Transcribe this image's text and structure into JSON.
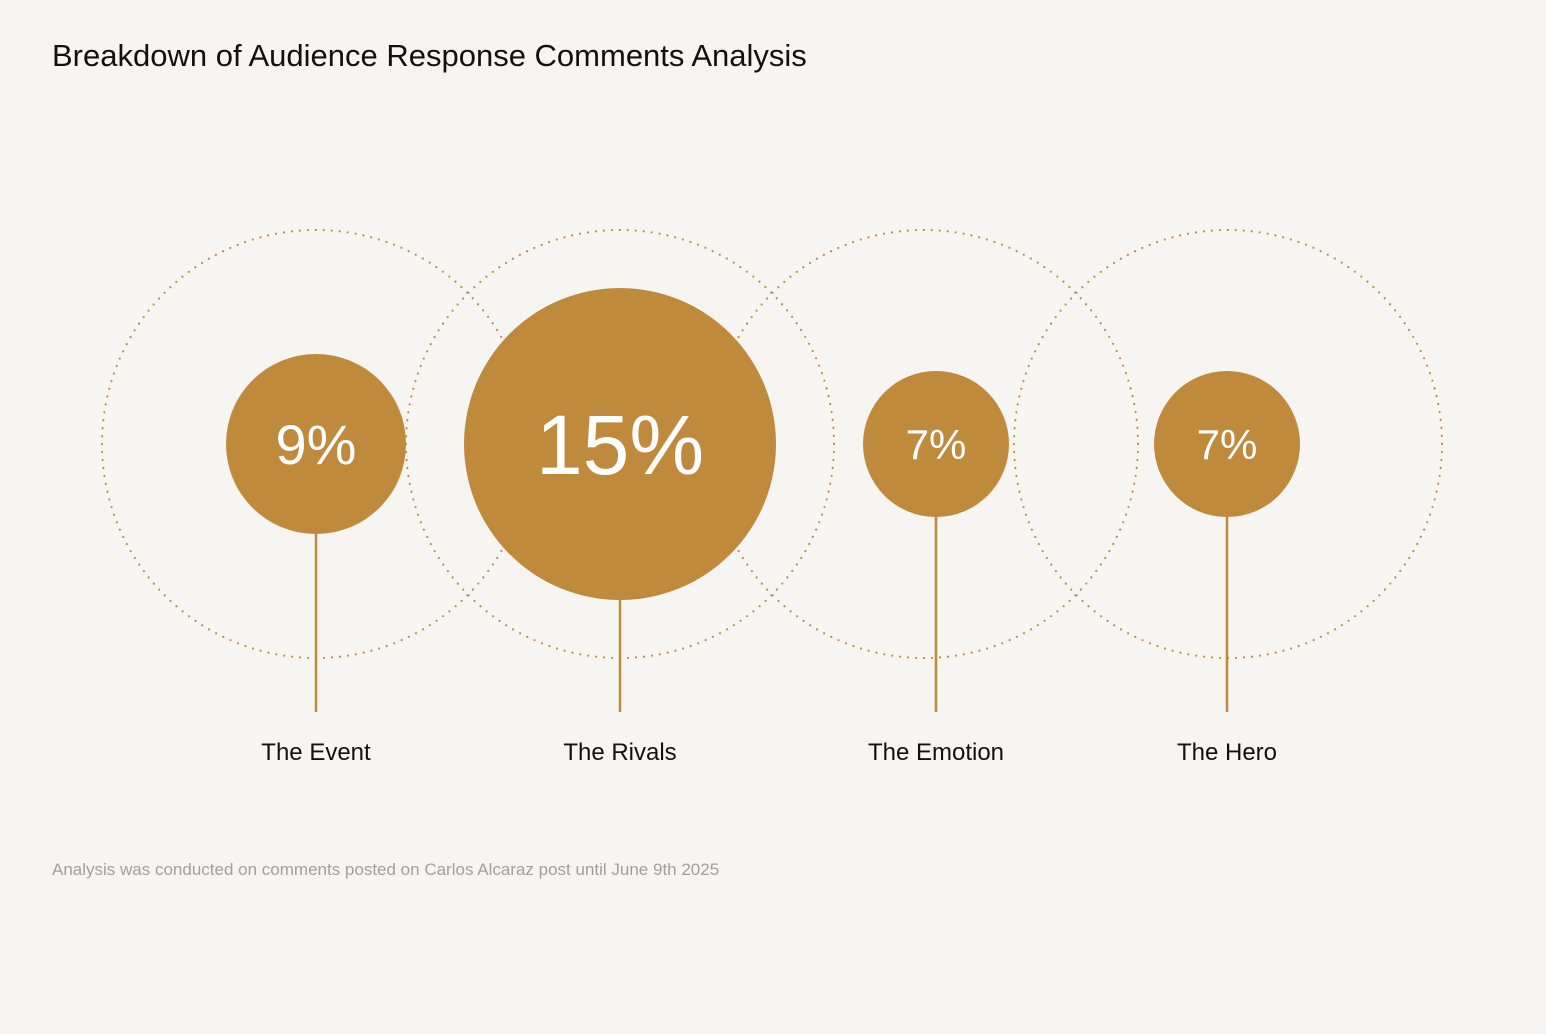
{
  "chart_data": {
    "type": "bubble",
    "title": "Breakdown of Audience Response Comments Analysis",
    "unit": "%",
    "categories": [
      "The Event",
      "The Rivals",
      "The Emotion",
      "The Hero"
    ],
    "values": [
      9,
      15,
      7,
      7
    ],
    "value_labels": [
      "9%",
      "15%",
      "7%",
      "7%"
    ],
    "colors": {
      "bubble": "#c08a3c",
      "stem": "#c08a3c",
      "ring": "#c08a3c",
      "background": "#f7f5f1"
    },
    "legend": "none",
    "grid": false
  },
  "footnote": "Analysis was conducted on comments posted on Carlos Alcaraz post until June 9th 2025"
}
